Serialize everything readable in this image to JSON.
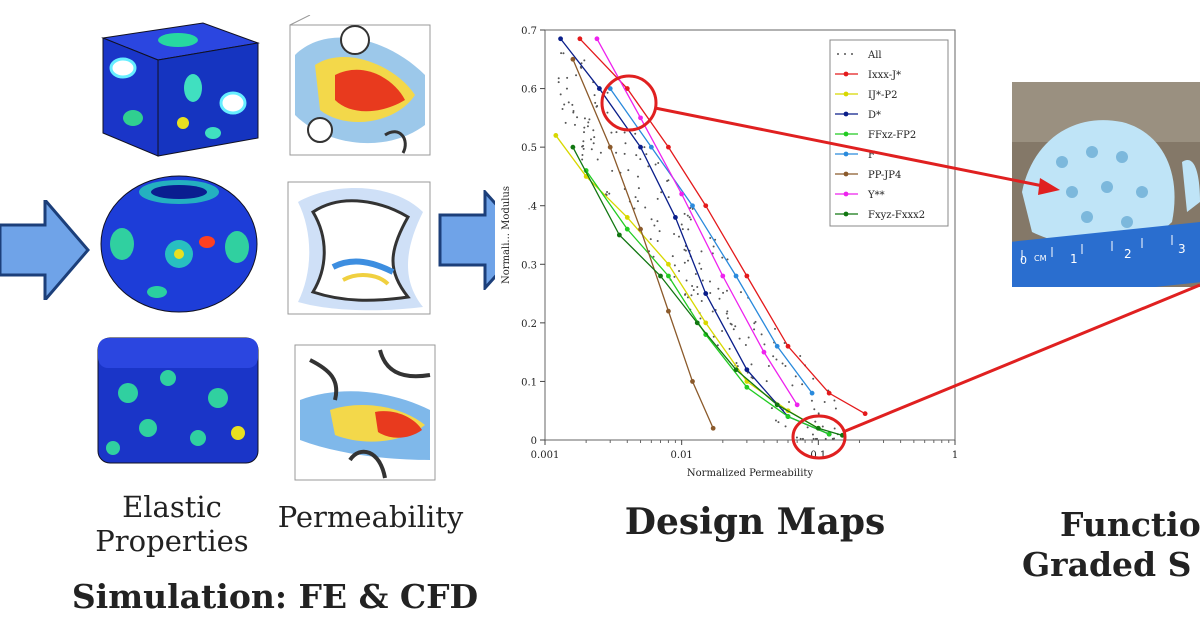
{
  "captions": {
    "elastic": "Elastic",
    "properties": "Properties",
    "permeability": "Permeability",
    "simulation": "Simulation: FE & CFD",
    "design_maps": "Design Maps",
    "functional_line1": "Functio",
    "functional_line2": "Graded S"
  },
  "photo": {
    "ruler_labels": [
      "0",
      "CM",
      "1",
      "2",
      "3"
    ]
  },
  "colors": {
    "arrow_fill": "#6fa3e8",
    "arrow_stroke": "#1c3f7a",
    "highlight_red": "#e02020",
    "fe_blue": "#1a3cd0",
    "cfd_red": "#e83a1e"
  },
  "chart_data": {
    "type": "line",
    "xscale": "log",
    "xlim": [
      0.001,
      1
    ],
    "ylim": [
      0,
      0.7
    ],
    "xlabel": "Normalized Permeability",
    "ylabel": "Normali... Modulus",
    "x_ticks": [
      "0.001",
      "0.01",
      "0.1",
      "1"
    ],
    "y_ticks": [
      "0",
      "0.1",
      "0.2",
      "0.3",
      ".4",
      "0.5",
      "0.6",
      "0.7"
    ],
    "legend_position": "top-right",
    "series": [
      {
        "name": "All",
        "color": "#555555",
        "style": "dots"
      },
      {
        "name": "Ixxx-J*",
        "color": "#e41a1c",
        "x": [
          0.0018,
          0.004,
          0.008,
          0.015,
          0.03,
          0.06,
          0.12,
          0.22
        ],
        "y": [
          0.685,
          0.6,
          0.5,
          0.4,
          0.28,
          0.16,
          0.08,
          0.045
        ]
      },
      {
        "name": "IJ*-P2",
        "color": "#d8d800",
        "x": [
          0.0012,
          0.002,
          0.004,
          0.008,
          0.015,
          0.03,
          0.06,
          0.1
        ],
        "y": [
          0.52,
          0.45,
          0.38,
          0.3,
          0.2,
          0.1,
          0.05,
          0.02
        ]
      },
      {
        "name": "D*",
        "color": "#0a1e8a",
        "x": [
          0.0013,
          0.0025,
          0.005,
          0.009,
          0.015,
          0.03,
          0.06,
          0.12
        ],
        "y": [
          0.685,
          0.6,
          0.5,
          0.38,
          0.25,
          0.12,
          0.04,
          0.01
        ]
      },
      {
        "name": "FFxz-FP2",
        "color": "#22cc22",
        "x": [
          0.002,
          0.004,
          0.008,
          0.015,
          0.03,
          0.06,
          0.12
        ],
        "y": [
          0.46,
          0.36,
          0.28,
          0.18,
          0.09,
          0.04,
          0.01
        ]
      },
      {
        "name": "F",
        "color": "#2a8adc",
        "x": [
          0.003,
          0.006,
          0.012,
          0.025,
          0.05,
          0.09
        ],
        "y": [
          0.6,
          0.5,
          0.4,
          0.28,
          0.16,
          0.08
        ]
      },
      {
        "name": "PP-JP4",
        "color": "#8b5a2b",
        "x": [
          0.0016,
          0.003,
          0.005,
          0.008,
          0.012,
          0.017
        ],
        "y": [
          0.65,
          0.5,
          0.36,
          0.22,
          0.1,
          0.02
        ]
      },
      {
        "name": "Y**",
        "color": "#ee22ee",
        "x": [
          0.0024,
          0.005,
          0.01,
          0.02,
          0.04,
          0.07
        ],
        "y": [
          0.685,
          0.55,
          0.42,
          0.28,
          0.15,
          0.06
        ]
      },
      {
        "name": "Fxyz-Fxxx2",
        "color": "#117711",
        "x": [
          0.0016,
          0.0035,
          0.007,
          0.013,
          0.025,
          0.05,
          0.1,
          0.15
        ],
        "y": [
          0.5,
          0.35,
          0.28,
          0.2,
          0.12,
          0.06,
          0.02,
          0.008
        ]
      }
    ]
  }
}
